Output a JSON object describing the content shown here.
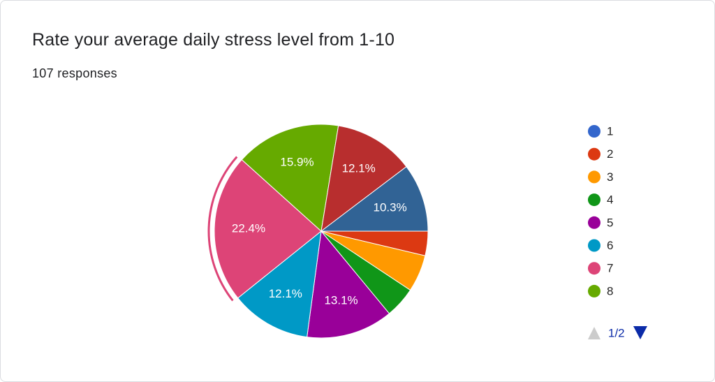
{
  "chart_data": {
    "type": "pie",
    "title": "Rate your average daily stress level from 1-10",
    "subtitle": "107 responses",
    "categories": [
      "1",
      "2",
      "3",
      "4",
      "5",
      "6",
      "7",
      "8",
      null,
      null
    ],
    "values": [
      0,
      3.7,
      5.6,
      4.7,
      13.1,
      12.1,
      22.4,
      15.9,
      12.1,
      10.3
    ],
    "value_labels": [
      null,
      null,
      null,
      null,
      "13.1%",
      "12.1%",
      "22.4%",
      "15.9%",
      "12.1%",
      "10.3%"
    ],
    "colors": [
      "#3366cc",
      "#dc3912",
      "#ff9900",
      "#109618",
      "#990099",
      "#0099c6",
      "#dd4477",
      "#66aa00",
      "#b82e2e",
      "#316395"
    ],
    "legend_position": "right",
    "legend_page": "1/2"
  }
}
